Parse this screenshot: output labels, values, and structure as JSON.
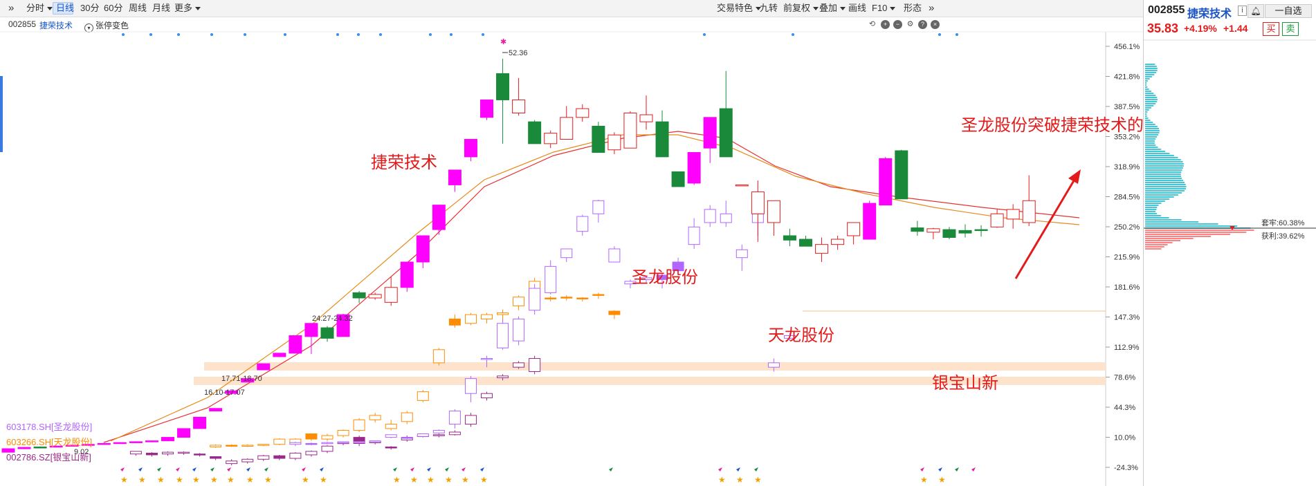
{
  "toolbar": {
    "collapse_icon": "double-chevron-right",
    "left_items": [
      {
        "label": "分时",
        "dropdown": true,
        "active": false
      },
      {
        "label": "日线",
        "dropdown": false,
        "active": true
      },
      {
        "label": "30分",
        "dropdown": false,
        "active": false
      },
      {
        "label": "60分",
        "dropdown": false,
        "active": false
      },
      {
        "label": "周线",
        "dropdown": false,
        "active": false
      },
      {
        "label": "月线",
        "dropdown": false,
        "active": false
      },
      {
        "label": "更多",
        "dropdown": true,
        "active": false
      }
    ],
    "right_items": [
      {
        "label": "交易特色",
        "dropdown": true
      },
      {
        "label": "九转",
        "dropdown": false
      },
      {
        "label": "前复权",
        "dropdown": true
      },
      {
        "label": "叠加",
        "dropdown": true
      },
      {
        "label": "画线",
        "dropdown": false
      },
      {
        "label": "F10",
        "dropdown": true
      },
      {
        "label": "形态",
        "dropdown": false
      }
    ]
  },
  "subheader": {
    "code": "002855",
    "name": "捷荣技术",
    "toggle_label": "张停变色"
  },
  "chart_controls": [
    "refresh-icon",
    "zoom-in-icon",
    "zoom-out-icon",
    "settings-icon",
    "help-icon",
    "close-icon"
  ],
  "colors": {
    "up": "#ff00ff",
    "down": "#1a8a3a",
    "red": "#e31b1b",
    "ma_red": "#e83030",
    "ma_orange": "#e88a1a",
    "purple": "#b066ff",
    "orange": "#ff8c00",
    "darkpurple": "#9a2a8a",
    "band": "#fde3cc",
    "blue": "#1a56c9",
    "chip_cyan": "#40c8d8",
    "chip_red": "#ff8080"
  },
  "chart_data": {
    "type": "candlestick",
    "y_axis_ticks": [
      "456.1%",
      "421.8%",
      "387.5%",
      "353.2%",
      "318.9%",
      "284.5%",
      "250.2%",
      "215.9%",
      "181.6%",
      "147.3%",
      "112.9%",
      "78.6%",
      "44.3%",
      "10.0%",
      "-24.3%"
    ],
    "annotations": [
      {
        "text": "捷荣技术",
        "color": "#e31b1b"
      },
      {
        "text": "圣龙股份",
        "color": "#e31b1b"
      },
      {
        "text": "天龙股份",
        "color": "#e31b1b"
      },
      {
        "text": "银宝山新",
        "color": "#e31b1b"
      },
      {
        "text": "圣龙股份突破捷荣技术的高度压制",
        "color": "#e31b1b"
      }
    ],
    "price_labels": [
      "52.36",
      "24.27-24.32",
      "17.71-18.70",
      "16.10-17.07",
      "9.02"
    ],
    "overlay_legend": [
      {
        "text": "603178.SH[圣龙股份]",
        "color": "#b066ff"
      },
      {
        "text": "603266.SH[天龙股份]",
        "color": "#ff8c00"
      },
      {
        "text": "002786.SZ[银宝山新]",
        "color": "#9a2a8a"
      }
    ],
    "main_candles": [
      [
        -7.0,
        -3.0,
        -7.0,
        -3.0,
        1
      ],
      [
        -3.0,
        -1.5,
        -3.5,
        -1.0,
        1
      ],
      [
        -1.5,
        -1.0,
        -2.0,
        -0.5,
        0
      ],
      [
        -1.0,
        0.0,
        -1.5,
        0.5,
        1
      ],
      [
        0.0,
        1.0,
        -0.5,
        1.5,
        1
      ],
      [
        1.0,
        2.0,
        0.5,
        2.5,
        1
      ],
      [
        2.0,
        3.0,
        1.5,
        3.5,
        1
      ],
      [
        3.0,
        4.0,
        2.5,
        4.5,
        1
      ],
      [
        4.0,
        5.0,
        3.5,
        5.5,
        1
      ],
      [
        5.0,
        6.0,
        4.5,
        6.5,
        1
      ],
      [
        6.0,
        10.0,
        5.5,
        10.0,
        1
      ],
      [
        10.0,
        20.0,
        10.0,
        20.0,
        1
      ],
      [
        20.0,
        33.0,
        20.0,
        33.0,
        1
      ],
      [
        40.0,
        43.0,
        40.0,
        43.0,
        1
      ],
      [
        60.0,
        63.0,
        60.0,
        63.0,
        1
      ],
      [
        73.0,
        77.0,
        73.0,
        77.0,
        1
      ],
      [
        87.0,
        94.0,
        87.0,
        94.0,
        1
      ],
      [
        102.0,
        106.0,
        102.0,
        106.0,
        1
      ],
      [
        106.0,
        126.0,
        106.0,
        126.0,
        1
      ],
      [
        125.0,
        140.0,
        105.0,
        140.0,
        1
      ],
      [
        135.0,
        123.0,
        119.0,
        137.0,
        0
      ],
      [
        125.0,
        150.0,
        125.0,
        151.0,
        1
      ],
      [
        175.0,
        169.0,
        163.0,
        177.0,
        0
      ],
      [
        169.0,
        173.0,
        167.0,
        175.0,
        2
      ],
      [
        164.0,
        181.0,
        160.0,
        193.0,
        2
      ],
      [
        181.0,
        210.0,
        176.0,
        210.0,
        1
      ],
      [
        210.0,
        240.0,
        203.0,
        240.0,
        1
      ],
      [
        247.0,
        275.0,
        241.0,
        275.0,
        1
      ],
      [
        298.0,
        315.0,
        290.0,
        315.0,
        1
      ],
      [
        330.0,
        350.0,
        325.0,
        350.0,
        1
      ],
      [
        375.0,
        395.0,
        372.0,
        395.0,
        1
      ],
      [
        425.0,
        395.0,
        345.0,
        442.0,
        0
      ],
      [
        380.0,
        395.0,
        377.0,
        420.0,
        2
      ],
      [
        370.0,
        345.0,
        345.0,
        372.0,
        0
      ],
      [
        345.0,
        357.0,
        340.0,
        360.0,
        2
      ],
      [
        350.0,
        375.0,
        350.0,
        388.0,
        2
      ],
      [
        375.0,
        385.0,
        370.0,
        390.0,
        2
      ],
      [
        365.0,
        335.0,
        335.0,
        370.0,
        0
      ],
      [
        338.0,
        355.0,
        333.0,
        358.0,
        2
      ],
      [
        340.0,
        380.0,
        340.0,
        382.0,
        2
      ],
      [
        370.0,
        378.0,
        361.0,
        400.0,
        2
      ],
      [
        370.0,
        330.0,
        330.0,
        383.0,
        0
      ],
      [
        313.0,
        296.0,
        296.0,
        313.0,
        0
      ],
      [
        300.0,
        335.0,
        298.0,
        335.0,
        1
      ],
      [
        340.0,
        375.0,
        323.0,
        375.0,
        1
      ],
      [
        385.0,
        330.0,
        330.0,
        428.0,
        0
      ],
      [
        298.0,
        298.0,
        298.0,
        298.0,
        2
      ],
      [
        265.0,
        290.0,
        233.0,
        303.0,
        2
      ],
      [
        255.0,
        280.0,
        240.0,
        280.0,
        2
      ],
      [
        235.0,
        240.0,
        228.0,
        248.0,
        0
      ],
      [
        236.0,
        228.0,
        228.0,
        240.0,
        0
      ],
      [
        220.0,
        230.0,
        210.0,
        238.0,
        2
      ],
      [
        230.0,
        236.0,
        224.0,
        240.0,
        2
      ],
      [
        240.0,
        255.0,
        230.0,
        255.0,
        2
      ],
      [
        277.0,
        236.0,
        236.0,
        280.0,
        1
      ],
      [
        275.0,
        328.0,
        275.0,
        330.0,
        1
      ],
      [
        282.0,
        337.0,
        282.0,
        338.0,
        0
      ],
      [
        245.0,
        249.0,
        240.0,
        257.0,
        0
      ],
      [
        244.0,
        248.0,
        236.0,
        249.0,
        2
      ],
      [
        247.0,
        238.0,
        236.0,
        250.0,
        0
      ],
      [
        243.0,
        246.0,
        238.0,
        253.0,
        0
      ],
      [
        247.0,
        246.0,
        239.0,
        252.0,
        0
      ],
      [
        250.0,
        265.0,
        249.0,
        270.0,
        2
      ],
      [
        259.0,
        270.0,
        248.0,
        276.0,
        2
      ],
      [
        255.0,
        280.0,
        251.0,
        309.0,
        2
      ]
    ],
    "overlay_sl": [
      [
        2,
        4,
        0,
        5,
        1
      ],
      [
        3,
        3,
        1,
        4,
        0
      ],
      [
        3,
        4,
        2,
        5,
        1
      ],
      [
        4,
        5,
        3,
        5,
        1
      ],
      [
        4,
        5,
        3,
        5,
        1
      ],
      [
        5,
        6,
        4,
        6,
        1
      ],
      [
        10,
        13,
        9,
        13,
        1
      ],
      [
        10,
        10,
        8,
        11,
        0
      ],
      [
        11,
        14,
        10,
        14,
        1
      ],
      [
        15,
        18,
        14,
        19,
        1
      ],
      [
        25,
        40,
        20,
        42,
        1
      ],
      [
        60,
        77,
        50,
        80,
        1
      ],
      [
        100,
        100,
        90,
        103,
        1
      ],
      [
        112,
        140,
        110,
        145,
        1
      ],
      [
        120,
        145,
        115,
        148,
        1
      ],
      [
        155,
        180,
        150,
        185,
        1
      ],
      [
        175,
        205,
        173,
        212,
        1
      ],
      [
        215,
        225,
        210,
        225,
        1
      ],
      [
        245,
        262,
        240,
        264,
        1
      ],
      [
        265,
        280,
        255,
        281,
        1
      ],
      [
        210,
        225,
        210,
        228,
        1
      ],
      [
        185,
        188,
        180,
        190,
        1
      ],
      [
        190,
        192,
        186,
        194,
        1
      ],
      [
        195,
        190,
        180,
        198,
        0
      ],
      [
        210,
        200,
        195,
        215,
        0
      ],
      [
        230,
        250,
        225,
        260,
        1
      ],
      [
        255,
        270,
        250,
        275,
        1
      ],
      [
        255,
        265,
        250,
        280,
        1
      ],
      [
        215,
        224,
        200,
        230,
        1
      ],
      [
        255,
        265,
        240,
        275,
        1
      ],
      [
        90,
        95,
        85,
        100,
        1
      ],
      [
        123,
        126,
        120,
        129,
        1
      ]
    ],
    "overlay_tl": [
      [
        -1,
        1,
        -2,
        2,
        1
      ],
      [
        0,
        1,
        -1,
        2,
        0
      ],
      [
        0,
        1,
        -1,
        2,
        1
      ],
      [
        1,
        2,
        0,
        2,
        1
      ],
      [
        2,
        8,
        1,
        9,
        1
      ],
      [
        3,
        8,
        2,
        9,
        1
      ],
      [
        8,
        14,
        6,
        14,
        0
      ],
      [
        8,
        12,
        6,
        14,
        1
      ],
      [
        12,
        18,
        10,
        19,
        1
      ],
      [
        18,
        30,
        16,
        32,
        1
      ],
      [
        30,
        35,
        27,
        38,
        1
      ],
      [
        20,
        25,
        18,
        30,
        1
      ],
      [
        28,
        38,
        25,
        40,
        1
      ],
      [
        52,
        62,
        50,
        64,
        1
      ],
      [
        95,
        110,
        92,
        112,
        1
      ],
      [
        138,
        145,
        135,
        150,
        0
      ],
      [
        140,
        150,
        138,
        152,
        1
      ],
      [
        145,
        150,
        140,
        152,
        1
      ],
      [
        150,
        152,
        143,
        156,
        1
      ],
      [
        160,
        170,
        155,
        172,
        1
      ],
      [
        165,
        188,
        160,
        192,
        1
      ],
      [
        168,
        169,
        165,
        171,
        0
      ],
      [
        169,
        170,
        166,
        172,
        0
      ],
      [
        168,
        169,
        165,
        170,
        0
      ],
      [
        172,
        173,
        168,
        175,
        0
      ],
      [
        150,
        154,
        145,
        155,
        0
      ]
    ],
    "overlay_yb": [
      [
        -9,
        -6,
        -11,
        -6,
        1
      ],
      [
        -10,
        -8,
        -12,
        -7,
        0
      ],
      [
        -9,
        -7,
        -11,
        -6,
        1
      ],
      [
        -8,
        -7,
        -10,
        -6,
        1
      ],
      [
        -10,
        -9,
        -12,
        -8,
        0
      ],
      [
        -12,
        -14,
        -16,
        -12,
        0
      ],
      [
        -20,
        -17,
        -22,
        -15,
        1
      ],
      [
        -18,
        -15,
        -20,
        -14,
        1
      ],
      [
        -15,
        -11,
        -17,
        -10,
        1
      ],
      [
        -14,
        -11,
        -16,
        -10,
        0
      ],
      [
        -14,
        -8,
        -16,
        -7,
        1
      ],
      [
        -10,
        -6,
        -12,
        -5,
        1
      ],
      [
        -6,
        0,
        -8,
        1,
        1
      ],
      [
        3,
        4,
        1,
        5,
        1
      ],
      [
        10,
        3,
        0,
        12,
        0
      ],
      [
        5,
        4,
        2,
        6,
        1
      ],
      [
        -2,
        -1,
        -4,
        0,
        0
      ],
      [
        7,
        10,
        5,
        12,
        1
      ],
      [
        12,
        11,
        10,
        13,
        1
      ],
      [
        12,
        13,
        10,
        14,
        1
      ],
      [
        13,
        16,
        12,
        18,
        1
      ],
      [
        25,
        35,
        22,
        38,
        1
      ],
      [
        55,
        60,
        52,
        62,
        1
      ],
      [
        78,
        80,
        75,
        82,
        1
      ],
      [
        90,
        95,
        88,
        97,
        1
      ],
      [
        85,
        100,
        82,
        103,
        1
      ]
    ]
  },
  "chip_panel": {
    "code": "002855",
    "name": "捷荣技术",
    "info_icon": "info-icon",
    "bell_icon": "bell-icon",
    "fav_label": "一自选",
    "price": "35.83",
    "pct": "+4.19%",
    "chg": "+1.44",
    "buy_label": "买",
    "sell_label": "卖",
    "trapped_label": "套牢:60.38%",
    "profit_label": "获利:39.62%"
  }
}
